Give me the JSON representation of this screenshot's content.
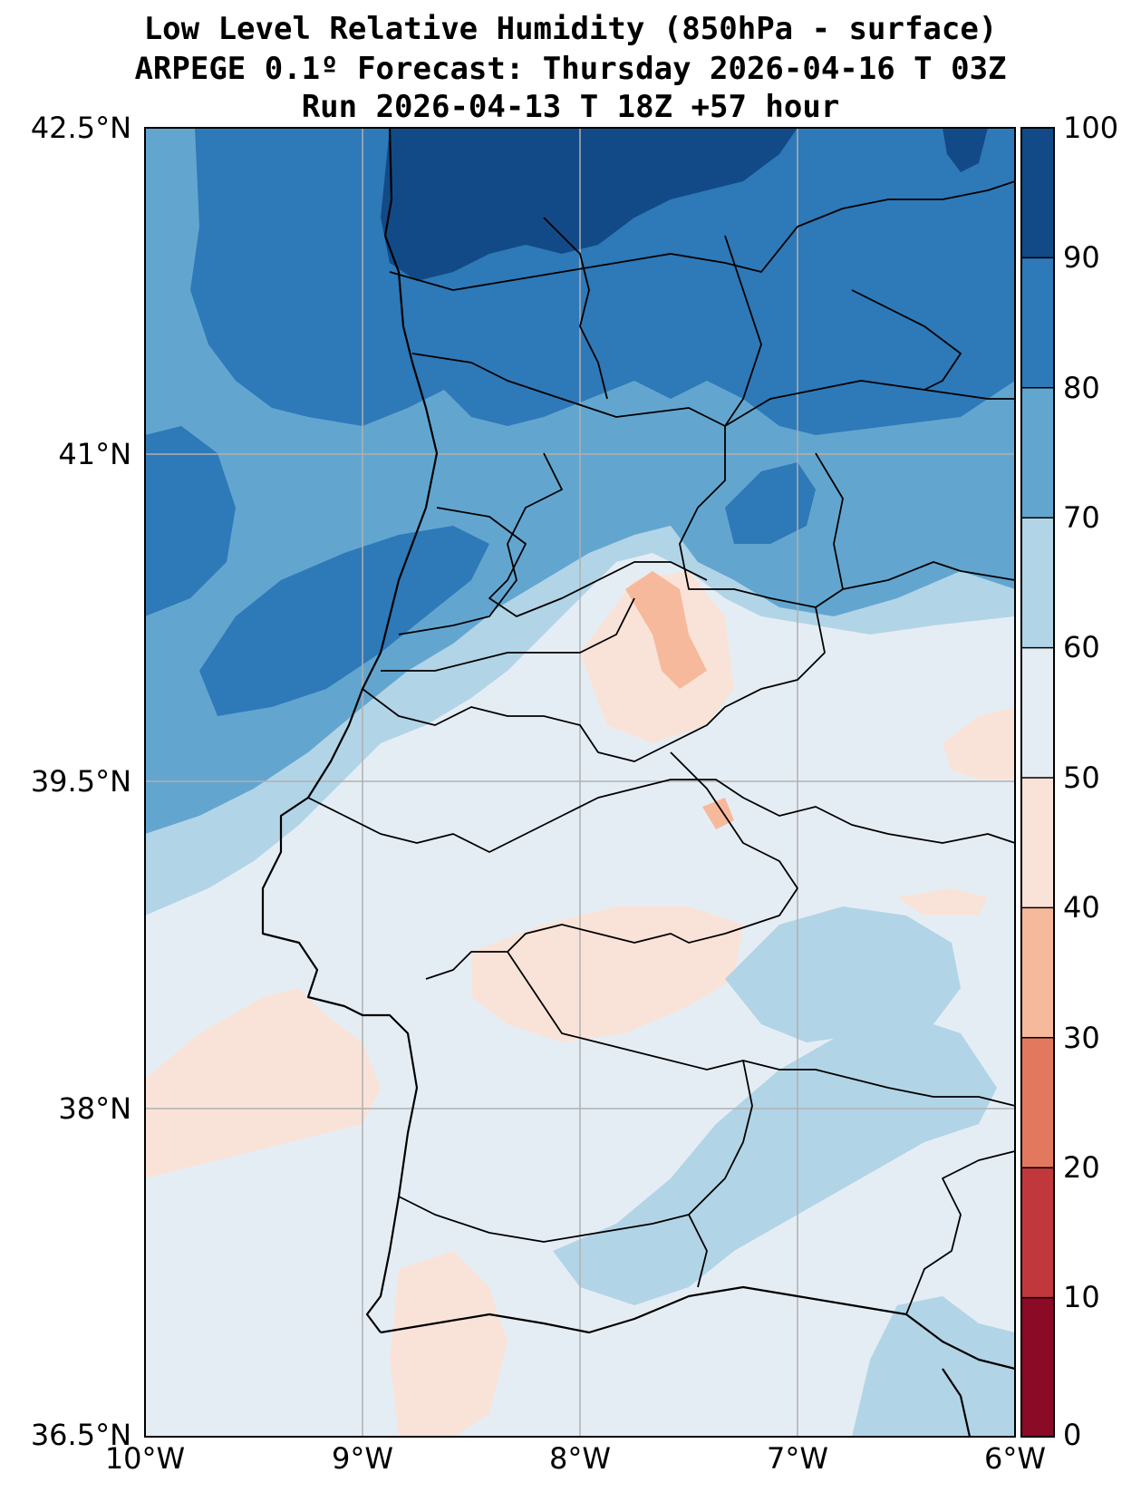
{
  "title": {
    "line1": "Low Level Relative Humidity (850hPa - surface)",
    "line2": "ARPEGE 0.1º Forecast: Thursday 2026-04-16 T 03Z",
    "line3": "Run 2026-04-13 T 18Z +57 hour"
  },
  "map": {
    "lat_labels": [
      "42.5°N",
      "41°N",
      "39.5°N",
      "38°N",
      "36.5°N"
    ],
    "lon_labels": [
      "10°W",
      "9°W",
      "8°W",
      "7°W",
      "6°W"
    ]
  },
  "colorbar": {
    "labels": [
      "100",
      "90",
      "80",
      "70",
      "60",
      "50",
      "40",
      "30",
      "20",
      "10",
      "0"
    ],
    "colors": [
      "#124a87",
      "#2e79b8",
      "#62a6d0",
      "#b2d4e7",
      "#e5edf4",
      "#f9e3d8",
      "#f7b99c",
      "#e2795f",
      "#c0383b",
      "#8b0a25"
    ]
  },
  "colors": {
    "rh_90_100": "#124a87",
    "rh_80_90": "#2e79b8",
    "rh_70_80": "#62a6d0",
    "rh_60_70": "#b2d4e7",
    "rh_50_60": "#e5edf4",
    "rh_40_50": "#f9e3d8",
    "rh_30_40": "#f7b99c",
    "grid": "#b0b0b0"
  }
}
